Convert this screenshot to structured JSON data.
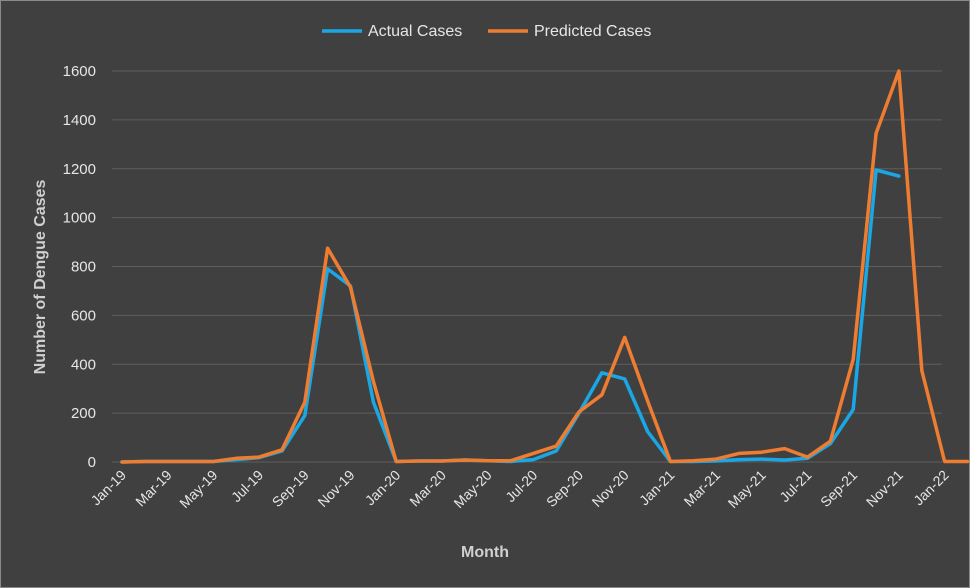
{
  "chart_data": {
    "type": "line",
    "xlabel": "Month",
    "ylabel": "Number of Dengue Cases",
    "ylim": [
      0,
      1600
    ],
    "yticks": [
      "0",
      "200",
      "400",
      "600",
      "800",
      "1000",
      "1200",
      "1400",
      "1600"
    ],
    "grid": true,
    "legend_position": "top-center",
    "categories": [
      "Jan-19",
      "Feb-19",
      "Mar-19",
      "Apr-19",
      "May-19",
      "Jun-19",
      "Jul-19",
      "Aug-19",
      "Sep-19",
      "Oct-19",
      "Nov-19",
      "Dec-19",
      "Jan-20",
      "Feb-20",
      "Mar-20",
      "Apr-20",
      "May-20",
      "Jun-20",
      "Jul-20",
      "Aug-20",
      "Sep-20",
      "Oct-20",
      "Nov-20",
      "Dec-20",
      "Jan-21",
      "Feb-21",
      "Mar-21",
      "Apr-21",
      "May-21",
      "Jun-21",
      "Jul-21",
      "Aug-21",
      "Sep-21",
      "Oct-21",
      "Nov-21",
      "Dec-21",
      "Jan-22",
      "Feb-22"
    ],
    "tick_labels": [
      "Jan-19",
      "Mar-19",
      "May-19",
      "Jul-19",
      "Sep-19",
      "Nov-19",
      "Jan-20",
      "Mar-20",
      "May-20",
      "Jul-20",
      "Sep-20",
      "Nov-20",
      "Jan-21",
      "Mar-21",
      "May-21",
      "Jul-21",
      "Sep-21",
      "Nov-21",
      "Jan-22"
    ],
    "series": [
      {
        "name": "Actual Cases",
        "color": "#1aa7e6",
        "values": [
          0,
          2,
          2,
          2,
          2,
          10,
          18,
          45,
          190,
          790,
          720,
          245,
          2,
          4,
          4,
          8,
          5,
          2,
          10,
          45,
          200,
          365,
          340,
          125,
          2,
          2,
          4,
          10,
          12,
          8,
          15,
          75,
          215,
          1195,
          1170,
          null,
          null,
          null
        ]
      },
      {
        "name": "Predicted Cases",
        "color": "#ee7d31",
        "values": [
          0,
          2,
          2,
          2,
          2,
          15,
          20,
          50,
          245,
          875,
          715,
          330,
          2,
          4,
          4,
          8,
          5,
          5,
          35,
          65,
          205,
          275,
          510,
          250,
          2,
          5,
          12,
          35,
          40,
          55,
          20,
          85,
          420,
          1345,
          1600,
          375,
          2,
          2
        ]
      }
    ]
  }
}
